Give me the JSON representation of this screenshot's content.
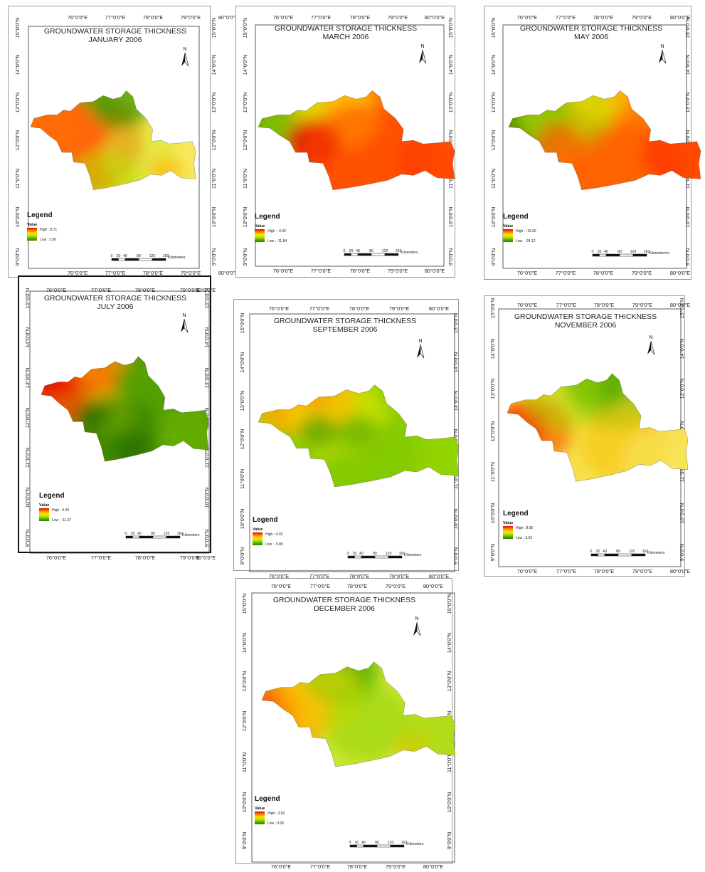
{
  "common": {
    "longitude_labels": [
      "76°0'0\"E",
      "77°0'0\"E",
      "78°0'0\"E",
      "79°0'0\"E",
      "80°0'0\"E"
    ],
    "latitude_labels": [
      "15°0'0\"N",
      "14°0'0\"N",
      "13°0'0\"N",
      "12°0'0\"N",
      "11°0'0\"N",
      "10°0'0\"N",
      "9°0'0\"N"
    ],
    "north_label": "N",
    "legend_title": "Legend",
    "legend_value_label": "Value",
    "scale_ticks": [
      "0",
      "20",
      "40",
      "80",
      "120",
      "160"
    ],
    "scale_unit": "Kilometers",
    "ramp_colors": [
      "#e60000",
      "#ff7a00",
      "#ffdc00",
      "#c8e600",
      "#5cb800",
      "#2f7d00"
    ]
  },
  "maps": [
    {
      "title_line1": "GROUNDWATER STORAGE THICKNESS",
      "title_line2": "JANUARY 2006",
      "high": "High : 8.71",
      "low": "Low : 3.56",
      "high_value": 8.71,
      "low_value": 3.56,
      "scale_unit": "Kilometers"
    },
    {
      "title_line1": "GROUNDWATER STORAGE THICKNESS",
      "title_line2": "MARCH 2006",
      "high": "High : -4.42",
      "low": "Low : -11.84",
      "high_value": -4.42,
      "low_value": -11.84,
      "scale_unit": "Kilometers"
    },
    {
      "title_line1": "GROUNDWATER STORAGE THICKNESS",
      "title_line2": "MAY 2006",
      "high": "High : -15.66",
      "low": "Low : -24.12",
      "high_value": -15.66,
      "low_value": -24.12,
      "scale_unit": "Kilometerms"
    },
    {
      "title_line1": "GROUNDWATER STORAGE THICKNESS",
      "title_line2": "JULY 2006",
      "high": "High : 5.69",
      "low": "Low : -11.37",
      "high_value": 5.69,
      "low_value": -11.37,
      "scale_unit": "Kilometers"
    },
    {
      "title_line1": "GROUNDWATER STORAGE THICKNESS",
      "title_line2": "SEPTEMBER 2006",
      "high": "High : 4.39",
      "low": "Low : -5.89",
      "high_value": 4.39,
      "low_value": -5.89,
      "scale_unit": "Kilometers"
    },
    {
      "title_line1": "GROUNDWATER STORAGE THICKNESS",
      "title_line2": "NOVEMBER 2006",
      "high": "High : 8.95",
      "low": "Low : 3.63",
      "high_value": 8.95,
      "low_value": 3.63,
      "scale_unit": "Kilometers"
    },
    {
      "title_line1": "GROUNDWATER STORAGE THICKNESS",
      "title_line2": "DECEMBER 2006",
      "high": "High : 3.99",
      "low": "Low : 9.06",
      "high_value": 3.99,
      "low_value": 9.06,
      "scale_unit": "Kilometers"
    }
  ]
}
